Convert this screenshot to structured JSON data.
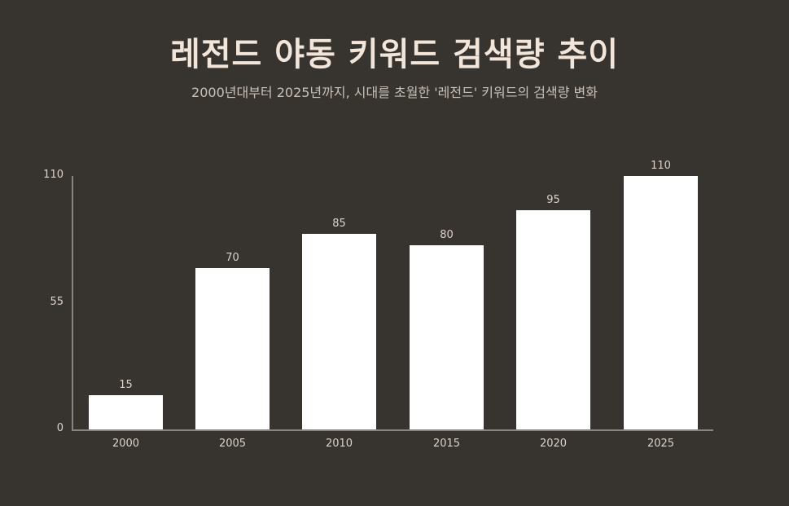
{
  "header": {
    "title": "레전드 야동 키워드 검색량 추이",
    "subtitle": "2000년대부터 2025년까지, 시대를 초월한 '레전드' 키워드의 검색량 변화"
  },
  "colors": {
    "background": "#37332f",
    "bar": "#ffffff",
    "axis": "#8a847d",
    "title": "#f2e6da",
    "text": "#ddd3c8"
  },
  "chart_data": {
    "type": "bar",
    "title": "레전드 야동 키워드 검색량 추이",
    "subtitle": "2000년대부터 2025년까지, 시대를 초월한 '레전드' 키워드의 검색량 변화",
    "categories": [
      "2000",
      "2005",
      "2010",
      "2015",
      "2020",
      "2025"
    ],
    "values": [
      15,
      70,
      85,
      80,
      95,
      110
    ],
    "xlabel": "",
    "ylabel": "",
    "ylim": [
      0,
      110
    ],
    "yticks": [
      "0",
      "55",
      "110"
    ],
    "grid": false,
    "legend": null,
    "data_labels": [
      "15",
      "70",
      "85",
      "80",
      "95",
      "110"
    ]
  }
}
